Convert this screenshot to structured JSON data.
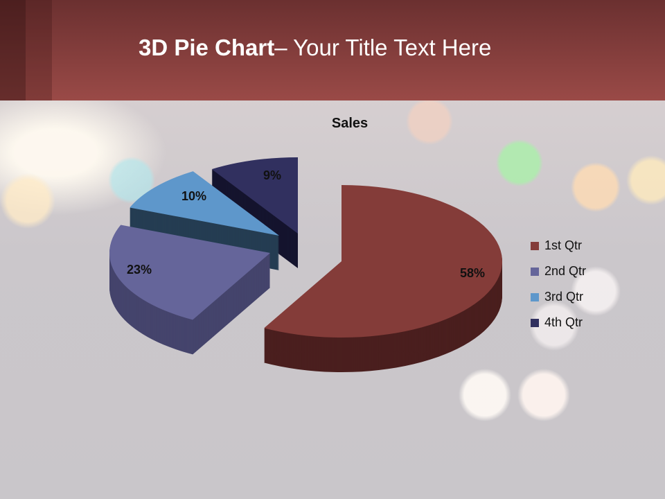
{
  "slide": {
    "title_bold": "3D Pie Chart",
    "title_rest": "– Your Title Text Here"
  },
  "chart_data": {
    "type": "pie",
    "variant": "3d-exploded",
    "title": "Sales",
    "categories": [
      "1st Qtr",
      "2nd Qtr",
      "3rd Qtr",
      "4th Qtr"
    ],
    "values": [
      58,
      23,
      10,
      9
    ],
    "labels": [
      "58%",
      "23%",
      "10%",
      "9%"
    ],
    "colors": [
      "#843c39",
      "#65659a",
      "#5e97cb",
      "#31305f"
    ],
    "side_colors": [
      "#4a1f1e",
      "#45446c",
      "#253d52",
      "#15142e"
    ],
    "legend_position": "right"
  }
}
